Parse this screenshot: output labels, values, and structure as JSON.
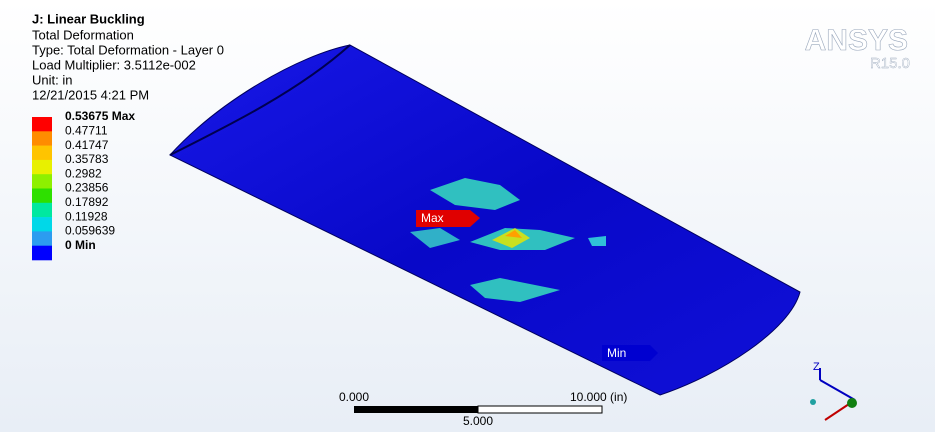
{
  "header": {
    "title": "J: Linear Buckling",
    "lines": [
      "Total Deformation",
      "Type: Total Deformation - Layer 0",
      "Load Multiplier: 3.5112e-002",
      "Unit: in",
      "12/21/2015 4:21 PM"
    ]
  },
  "legend": {
    "labels": [
      "0.53675 Max",
      "0.47711",
      "0.41747",
      "0.35783",
      "0.2982",
      "0.23856",
      "0.17892",
      "0.11928",
      "0.059639",
      "0 Min"
    ],
    "colors": [
      "#ff0000",
      "#ff8c00",
      "#ffc400",
      "#e8f000",
      "#8ef000",
      "#2ee000",
      "#00e8a0",
      "#00d8e8",
      "#2c9cf0",
      "#0000ff"
    ]
  },
  "logo": {
    "name": "ANSYS",
    "version": "R15.0"
  },
  "probes": {
    "max": "Max",
    "min": "Min"
  },
  "scale_bar": {
    "start": "0.000",
    "end": "10.000 (in)",
    "middle": "5.000"
  },
  "triad": {
    "z": "Z"
  }
}
